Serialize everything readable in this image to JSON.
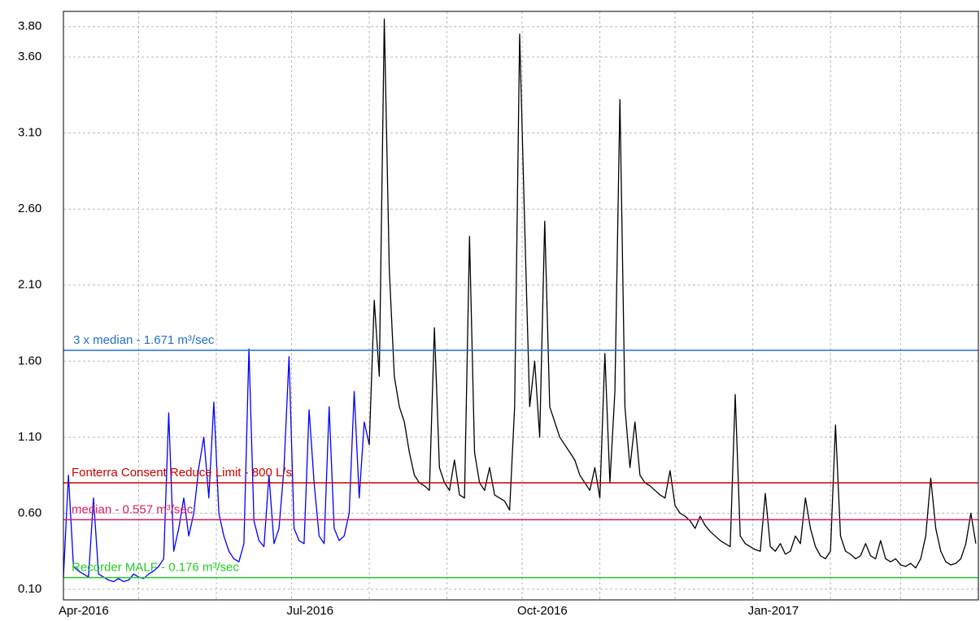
{
  "chart_data": {
    "type": "line",
    "ylim": [
      0.03,
      3.9
    ],
    "yticks": [
      {
        "value": 0.1,
        "label": "0.10"
      },
      {
        "value": 0.6,
        "label": "0.60"
      },
      {
        "value": 1.1,
        "label": "1.10"
      },
      {
        "value": 1.6,
        "label": "1.60"
      },
      {
        "value": 2.1,
        "label": "2.10"
      },
      {
        "value": 2.6,
        "label": "2.60"
      },
      {
        "value": 3.1,
        "label": "3.10"
      },
      {
        "value": 3.6,
        "label": "3.60"
      },
      {
        "value": 3.8,
        "label": "3.80"
      }
    ],
    "xlim": [
      0,
      182.5
    ],
    "xticks": [
      {
        "value": 0,
        "label": "Apr-2016"
      },
      {
        "value": 45.5,
        "label": "Jul-2016"
      },
      {
        "value": 91.5,
        "label": "Oct-2016"
      },
      {
        "value": 137.5,
        "label": "Jan-2017"
      }
    ],
    "xminor": [
      15,
      30.5,
      61,
      76.5,
      107,
      122,
      153,
      167
    ],
    "grid": true,
    "reference_lines": [
      {
        "label": "3 x median - 1.671 m³/sec",
        "value": 1.671,
        "color": "#1f6fd0"
      },
      {
        "label": "Fonterra Consent Reduce Limit - 800 L/s",
        "value": 0.8,
        "color": "#cc0000"
      },
      {
        "label": "median - 0.557 m³/sec",
        "value": 0.557,
        "color": "#d81b60"
      },
      {
        "label": "Recorder MALF - 0.176 m³/sec",
        "value": 0.176,
        "color": "#22cc22"
      }
    ],
    "series": [
      {
        "color": "#0000ff",
        "values": [
          0.18,
          0.85,
          0.25,
          0.22,
          0.2,
          0.18,
          0.7,
          0.2,
          0.18,
          0.16,
          0.15,
          0.17,
          0.15,
          0.16,
          0.2,
          0.18,
          0.17,
          0.2,
          0.22,
          0.25,
          0.3,
          1.26,
          0.35,
          0.5,
          0.7,
          0.45,
          0.6,
          0.9,
          1.1,
          0.7,
          1.33,
          0.6,
          0.45,
          0.35,
          0.3,
          0.28,
          0.4,
          1.68,
          0.55,
          0.42,
          0.38,
          0.85,
          0.4,
          0.5,
          0.9,
          1.63,
          0.5,
          0.42,
          0.4,
          1.28,
          0.8,
          0.45,
          0.4,
          1.3,
          0.5,
          0.42,
          0.45,
          0.6,
          1.4,
          0.7,
          1.2,
          1.05,
          null,
          null,
          null,
          null,
          null,
          null,
          null,
          null,
          null,
          null,
          null,
          null,
          null,
          null,
          null,
          null,
          null,
          null,
          null,
          null,
          null,
          null,
          null,
          null,
          null,
          null,
          null,
          null,
          null,
          null,
          null,
          null,
          null,
          null,
          null,
          null,
          null,
          null,
          null,
          null,
          null,
          null,
          null,
          null,
          null,
          null,
          null,
          null,
          null,
          null,
          null,
          null,
          null,
          null,
          null,
          null,
          null,
          null,
          null,
          null,
          null,
          null,
          null,
          null,
          null,
          null,
          null,
          null,
          null,
          null,
          null,
          null,
          null,
          null,
          null,
          null,
          null,
          null,
          null,
          null,
          null,
          null,
          null,
          null,
          null,
          null,
          null,
          null,
          null,
          null,
          null,
          null,
          null,
          null,
          null,
          null,
          null,
          null,
          null,
          null,
          null,
          null,
          null,
          null,
          null,
          null,
          null,
          null,
          null,
          null,
          null,
          null,
          null,
          null,
          null,
          null,
          null,
          null,
          null,
          null,
          null
        ]
      },
      {
        "color": "#000000",
        "values": [
          null,
          null,
          null,
          null,
          null,
          null,
          null,
          null,
          null,
          null,
          null,
          null,
          null,
          null,
          null,
          null,
          null,
          null,
          null,
          null,
          null,
          null,
          null,
          null,
          null,
          null,
          null,
          null,
          null,
          null,
          null,
          null,
          null,
          null,
          null,
          null,
          null,
          null,
          null,
          null,
          null,
          null,
          null,
          null,
          null,
          null,
          null,
          null,
          null,
          null,
          null,
          null,
          null,
          null,
          null,
          null,
          null,
          null,
          null,
          null,
          null,
          1.05,
          2.0,
          1.5,
          3.85,
          2.2,
          1.5,
          1.3,
          1.2,
          1.0,
          0.85,
          0.8,
          0.78,
          0.75,
          1.82,
          0.9,
          0.8,
          0.75,
          0.95,
          0.72,
          0.7,
          2.42,
          1.0,
          0.8,
          0.75,
          0.9,
          0.72,
          0.7,
          0.68,
          0.62,
          1.3,
          3.75,
          2.5,
          1.3,
          1.6,
          1.1,
          2.52,
          1.3,
          1.2,
          1.1,
          1.05,
          1.0,
          0.95,
          0.85,
          0.8,
          0.75,
          0.9,
          0.7,
          1.65,
          0.8,
          1.4,
          3.32,
          1.3,
          0.9,
          1.2,
          0.85,
          0.8,
          0.78,
          0.75,
          0.72,
          0.7,
          0.88,
          0.65,
          0.6,
          0.58,
          0.55,
          0.5,
          0.58,
          0.52,
          0.48,
          0.45,
          0.42,
          0.4,
          0.38,
          1.38,
          0.45,
          0.4,
          0.38,
          0.36,
          0.35,
          0.73,
          0.38,
          0.35,
          0.4,
          0.33,
          0.35,
          0.45,
          0.4,
          0.7,
          0.5,
          0.38,
          0.32,
          0.3,
          0.35,
          1.18,
          0.45,
          0.35,
          0.33,
          0.3,
          0.32,
          0.4,
          0.32,
          0.3,
          0.42,
          0.3,
          0.28,
          0.3,
          0.26,
          0.25,
          0.27,
          0.24,
          0.3,
          0.45,
          0.83,
          0.5,
          0.35,
          0.28,
          0.26,
          0.27,
          0.3,
          0.4,
          0.6,
          0.4
        ]
      }
    ]
  }
}
